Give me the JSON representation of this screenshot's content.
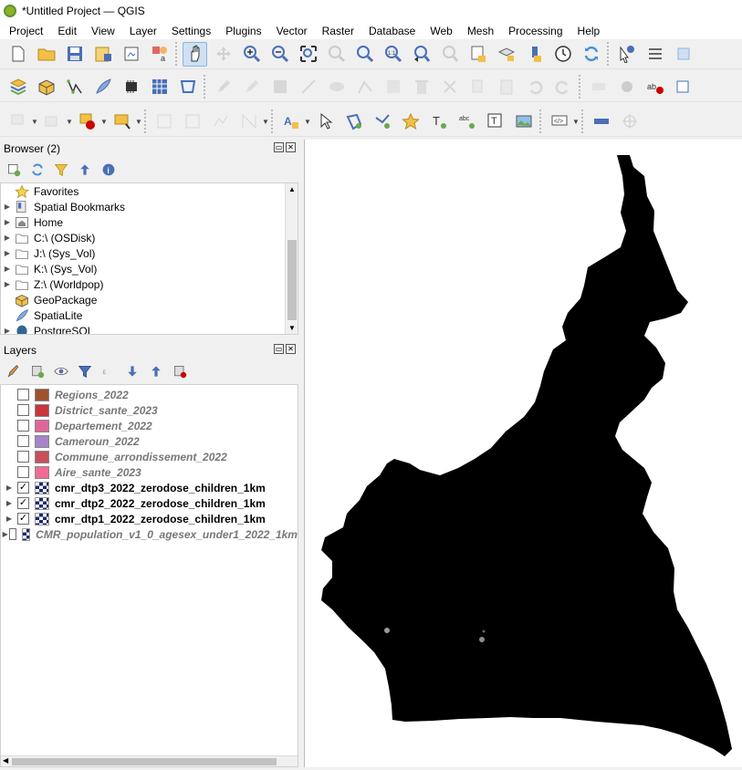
{
  "window": {
    "title": "*Untitled Project — QGIS"
  },
  "menu": [
    "Project",
    "Edit",
    "View",
    "Layer",
    "Settings",
    "Plugins",
    "Vector",
    "Raster",
    "Database",
    "Web",
    "Mesh",
    "Processing",
    "Help"
  ],
  "browser": {
    "title": "Browser (2)",
    "items": [
      {
        "label": "Favorites",
        "icon": "star-icon",
        "expandable": false
      },
      {
        "label": "Spatial Bookmarks",
        "icon": "bookmark-icon",
        "expandable": true
      },
      {
        "label": "Home",
        "icon": "home-icon",
        "expandable": true
      },
      {
        "label": "C:\\ (OSDisk)",
        "icon": "folder-icon",
        "expandable": true
      },
      {
        "label": "J:\\ (Sys_Vol)",
        "icon": "folder-icon",
        "expandable": true
      },
      {
        "label": "K:\\ (Sys_Vol)",
        "icon": "folder-icon",
        "expandable": true
      },
      {
        "label": "Z:\\ (Worldpop)",
        "icon": "folder-icon",
        "expandable": true
      },
      {
        "label": "GeoPackage",
        "icon": "geopackage-icon",
        "expandable": false
      },
      {
        "label": "SpatiaLite",
        "icon": "spatialite-icon",
        "expandable": false
      },
      {
        "label": "PostgreSQL",
        "icon": "postgresql-icon",
        "expandable": true
      }
    ]
  },
  "layers": {
    "title": "Layers",
    "items": [
      {
        "name": "Regions_2022",
        "checked": false,
        "kind": "vector",
        "color": "#a0522d"
      },
      {
        "name": "District_sante_2023",
        "checked": false,
        "kind": "vector",
        "color": "#c8373d"
      },
      {
        "name": "Departement_2022",
        "checked": false,
        "kind": "vector",
        "color": "#e0669a"
      },
      {
        "name": "Cameroun_2022",
        "checked": false,
        "kind": "vector",
        "color": "#a783c9"
      },
      {
        "name": "Commune_arrondissement_2022",
        "checked": false,
        "kind": "vector",
        "color": "#c7505a"
      },
      {
        "name": "Aire_sante_2023",
        "checked": false,
        "kind": "vector",
        "color": "#f06b95"
      },
      {
        "name": "cmr_dtp3_2022_zerodose_children_1km",
        "checked": true,
        "kind": "raster"
      },
      {
        "name": "cmr_dtp2_2022_zerodose_children_1km",
        "checked": true,
        "kind": "raster"
      },
      {
        "name": "cmr_dtp1_2022_zerodose_children_1km",
        "checked": true,
        "kind": "raster"
      },
      {
        "name": "CMR_population_v1_0_agesex_under1_2022_1km",
        "checked": false,
        "kind": "raster"
      }
    ]
  },
  "colors": {
    "map_fill": "#000000",
    "canvas_bg": "#ffffff",
    "qgis_green": "#93b023"
  }
}
